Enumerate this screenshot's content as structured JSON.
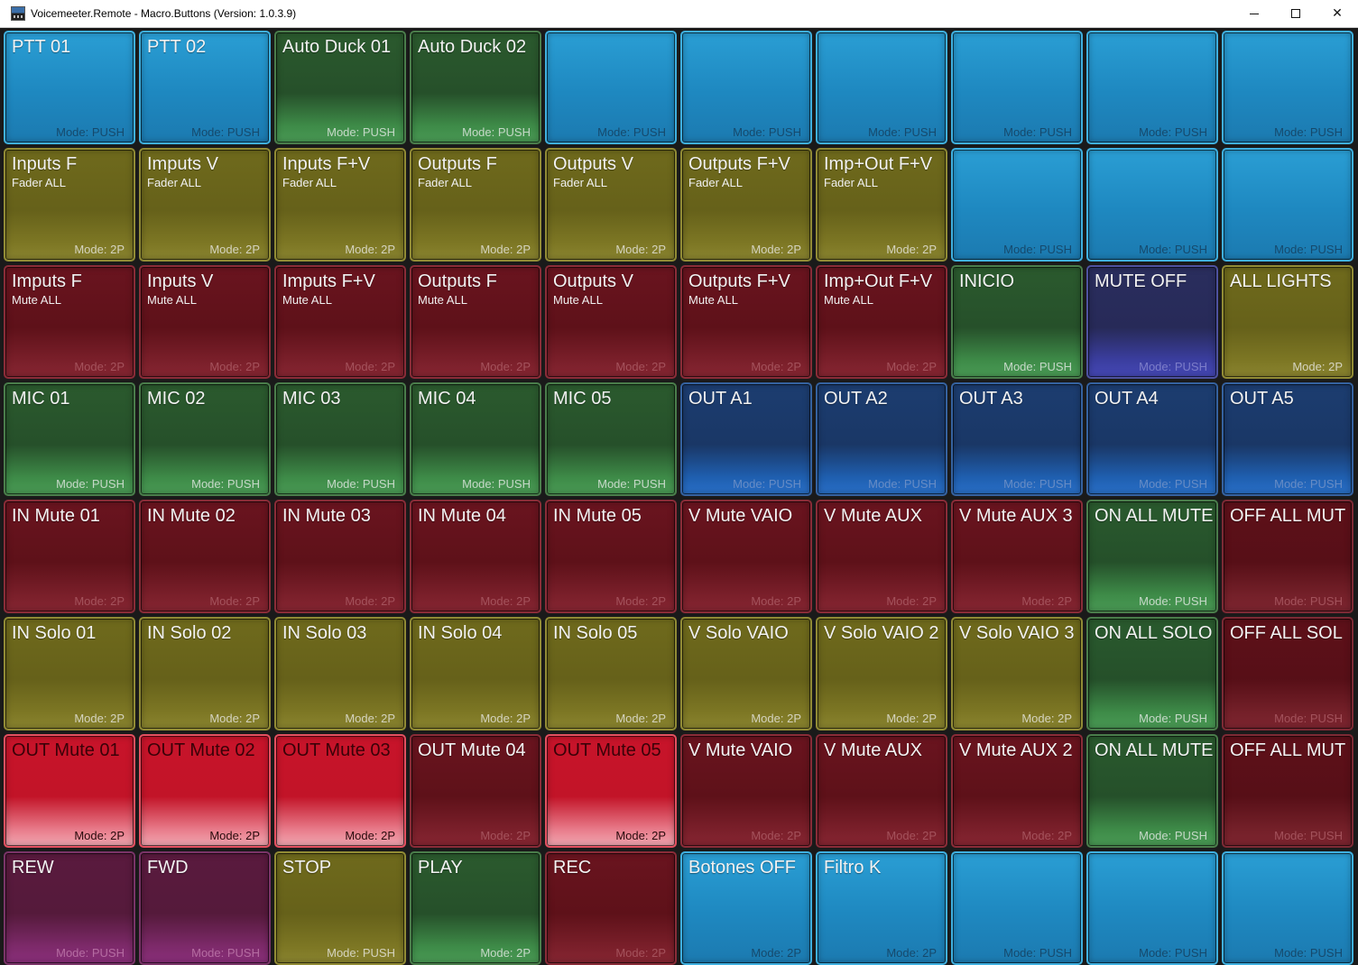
{
  "window": {
    "title": "Voicemeeter.Remote - Macro.Buttons (Version: 1.0.3.9)"
  },
  "buttons": [
    {
      "label": "PTT 01",
      "sub": "",
      "mode": "Mode: PUSH",
      "color": "blue"
    },
    {
      "label": "PTT 02",
      "sub": "",
      "mode": "Mode: PUSH",
      "color": "blue"
    },
    {
      "label": "Auto Duck 01",
      "sub": "",
      "mode": "Mode: PUSH",
      "color": "green"
    },
    {
      "label": "Auto Duck 02",
      "sub": "",
      "mode": "Mode: PUSH",
      "color": "green"
    },
    {
      "label": "",
      "sub": "",
      "mode": "Mode: PUSH",
      "color": "blue"
    },
    {
      "label": "",
      "sub": "",
      "mode": "Mode: PUSH",
      "color": "blue"
    },
    {
      "label": "",
      "sub": "",
      "mode": "Mode: PUSH",
      "color": "blue"
    },
    {
      "label": "",
      "sub": "",
      "mode": "Mode: PUSH",
      "color": "blue"
    },
    {
      "label": "",
      "sub": "",
      "mode": "Mode: PUSH",
      "color": "blue"
    },
    {
      "label": "",
      "sub": "",
      "mode": "Mode: PUSH",
      "color": "blue"
    },
    {
      "label": "Inputs F",
      "sub": "Fader ALL",
      "mode": "Mode: 2P",
      "color": "olive"
    },
    {
      "label": "Imputs V",
      "sub": "Fader ALL",
      "mode": "Mode: 2P",
      "color": "olive"
    },
    {
      "label": "Inputs F+V",
      "sub": "Fader ALL",
      "mode": "Mode: 2P",
      "color": "olive"
    },
    {
      "label": "Outputs F",
      "sub": "Fader ALL",
      "mode": "Mode: 2P",
      "color": "olive"
    },
    {
      "label": "Outputs V",
      "sub": "Fader ALL",
      "mode": "Mode: 2P",
      "color": "olive"
    },
    {
      "label": "Outputs F+V",
      "sub": "Fader ALL",
      "mode": "Mode: 2P",
      "color": "olive"
    },
    {
      "label": "Imp+Out F+V",
      "sub": "Fader ALL",
      "mode": "Mode: 2P",
      "color": "olive"
    },
    {
      "label": "",
      "sub": "",
      "mode": "Mode: PUSH",
      "color": "blue"
    },
    {
      "label": "",
      "sub": "",
      "mode": "Mode: PUSH",
      "color": "blue"
    },
    {
      "label": "",
      "sub": "",
      "mode": "Mode: PUSH",
      "color": "blue"
    },
    {
      "label": "Imputs F",
      "sub": "Mute ALL",
      "mode": "Mode: 2P",
      "color": "maroon"
    },
    {
      "label": "Inputs V",
      "sub": "Mute ALL",
      "mode": "Mode: 2P",
      "color": "maroon"
    },
    {
      "label": "Imputs F+V",
      "sub": "Mute ALL",
      "mode": "Mode: 2P",
      "color": "maroon"
    },
    {
      "label": "Outputs F",
      "sub": "Mute ALL",
      "mode": "Mode: 2P",
      "color": "maroon"
    },
    {
      "label": "Outputs V",
      "sub": "Mute ALL",
      "mode": "Mode: 2P",
      "color": "maroon"
    },
    {
      "label": "Outputs F+V",
      "sub": "Mute ALL",
      "mode": "Mode: 2P",
      "color": "maroon"
    },
    {
      "label": "Imp+Out F+V",
      "sub": "Mute ALL",
      "mode": "Mode: 2P",
      "color": "maroon"
    },
    {
      "label": "INICIO",
      "sub": "",
      "mode": "Mode: PUSH",
      "color": "green"
    },
    {
      "label": "MUTE OFF",
      "sub": "",
      "mode": "Mode: PUSH",
      "color": "purpleblue"
    },
    {
      "label": "ALL LIGHTS",
      "sub": "",
      "mode": "Mode: 2P",
      "color": "olive"
    },
    {
      "label": "MIC 01",
      "sub": "",
      "mode": "Mode: PUSH",
      "color": "green"
    },
    {
      "label": "MIC 02",
      "sub": "",
      "mode": "Mode: PUSH",
      "color": "green"
    },
    {
      "label": "MIC 03",
      "sub": "",
      "mode": "Mode: PUSH",
      "color": "green"
    },
    {
      "label": "MIC 04",
      "sub": "",
      "mode": "Mode: PUSH",
      "color": "green"
    },
    {
      "label": "MIC 05",
      "sub": "",
      "mode": "Mode: PUSH",
      "color": "green"
    },
    {
      "label": "OUT A1",
      "sub": "",
      "mode": "Mode: PUSH",
      "color": "navy"
    },
    {
      "label": "OUT A2",
      "sub": "",
      "mode": "Mode: PUSH",
      "color": "navy"
    },
    {
      "label": "OUT A3",
      "sub": "",
      "mode": "Mode: PUSH",
      "color": "navy"
    },
    {
      "label": "OUT A4",
      "sub": "",
      "mode": "Mode: PUSH",
      "color": "navy"
    },
    {
      "label": "OUT A5",
      "sub": "",
      "mode": "Mode: PUSH",
      "color": "navy"
    },
    {
      "label": "IN Mute 01",
      "sub": "",
      "mode": "Mode: 2P",
      "color": "maroon"
    },
    {
      "label": "IN Mute 02",
      "sub": "",
      "mode": "Mode: 2P",
      "color": "maroon"
    },
    {
      "label": "IN Mute 03",
      "sub": "",
      "mode": "Mode: 2P",
      "color": "maroon"
    },
    {
      "label": "IN Mute 04",
      "sub": "",
      "mode": "Mode: 2P",
      "color": "maroon"
    },
    {
      "label": "IN Mute 05",
      "sub": "",
      "mode": "Mode: 2P",
      "color": "maroon"
    },
    {
      "label": "V Mute VAIO",
      "sub": "",
      "mode": "Mode: 2P",
      "color": "maroon"
    },
    {
      "label": "V Mute AUX",
      "sub": "",
      "mode": "Mode: 2P",
      "color": "maroon"
    },
    {
      "label": "V Mute AUX 3",
      "sub": "",
      "mode": "Mode: 2P",
      "color": "maroon"
    },
    {
      "label": "ON ALL MUTE",
      "sub": "",
      "mode": "Mode: PUSH",
      "color": "greenmute"
    },
    {
      "label": "OFF ALL MUT",
      "sub": "",
      "mode": "Mode: PUSH",
      "color": "darkred"
    },
    {
      "label": "IN Solo 01",
      "sub": "",
      "mode": "Mode: 2P",
      "color": "olive"
    },
    {
      "label": "IN Solo 02",
      "sub": "",
      "mode": "Mode: 2P",
      "color": "olive"
    },
    {
      "label": "IN Solo 03",
      "sub": "",
      "mode": "Mode: 2P",
      "color": "olive"
    },
    {
      "label": "IN Solo 04",
      "sub": "",
      "mode": "Mode: 2P",
      "color": "olive"
    },
    {
      "label": "IN Solo 05",
      "sub": "",
      "mode": "Mode: 2P",
      "color": "olive"
    },
    {
      "label": "V Solo VAIO",
      "sub": "",
      "mode": "Mode: 2P",
      "color": "olive"
    },
    {
      "label": "V Solo VAIO 2",
      "sub": "",
      "mode": "Mode: 2P",
      "color": "olive"
    },
    {
      "label": "V Solo VAIO 3",
      "sub": "",
      "mode": "Mode: 2P",
      "color": "olive"
    },
    {
      "label": "ON ALL SOLO",
      "sub": "",
      "mode": "Mode: PUSH",
      "color": "greenmute"
    },
    {
      "label": "OFF ALL SOL",
      "sub": "",
      "mode": "Mode: PUSH",
      "color": "darkred"
    },
    {
      "label": "OUT Mute 01",
      "sub": "",
      "mode": "Mode: 2P",
      "color": "red"
    },
    {
      "label": "OUT Mute 02",
      "sub": "",
      "mode": "Mode: 2P",
      "color": "red"
    },
    {
      "label": "OUT Mute 03",
      "sub": "",
      "mode": "Mode: 2P",
      "color": "red"
    },
    {
      "label": "OUT Mute 04",
      "sub": "",
      "mode": "Mode: 2P",
      "color": "maroon"
    },
    {
      "label": "OUT Mute 05",
      "sub": "",
      "mode": "Mode: 2P",
      "color": "red"
    },
    {
      "label": "V Mute VAIO",
      "sub": "",
      "mode": "Mode: 2P",
      "color": "maroon"
    },
    {
      "label": "V Mute AUX",
      "sub": "",
      "mode": "Mode: 2P",
      "color": "maroon"
    },
    {
      "label": "V Mute AUX 2",
      "sub": "",
      "mode": "Mode: 2P",
      "color": "maroon"
    },
    {
      "label": "ON ALL MUTE",
      "sub": "",
      "mode": "Mode: PUSH",
      "color": "greenmute"
    },
    {
      "label": "OFF ALL MUT",
      "sub": "",
      "mode": "Mode: PUSH",
      "color": "darkred"
    },
    {
      "label": "REW",
      "sub": "",
      "mode": "Mode: PUSH",
      "color": "plum"
    },
    {
      "label": "FWD",
      "sub": "",
      "mode": "Mode: PUSH",
      "color": "plum"
    },
    {
      "label": "STOP",
      "sub": "",
      "mode": "Mode: PUSH",
      "color": "olive"
    },
    {
      "label": "PLAY",
      "sub": "",
      "mode": "Mode: 2P",
      "color": "green"
    },
    {
      "label": "REC",
      "sub": "",
      "mode": "Mode: 2P",
      "color": "maroon"
    },
    {
      "label": "Botones OFF",
      "sub": "",
      "mode": "Mode: 2P",
      "color": "blue"
    },
    {
      "label": "Filtro K",
      "sub": "",
      "mode": "Mode: 2P",
      "color": "blue"
    },
    {
      "label": "",
      "sub": "",
      "mode": "Mode: PUSH",
      "color": "blue"
    },
    {
      "label": "",
      "sub": "",
      "mode": "Mode: PUSH",
      "color": "blue"
    },
    {
      "label": "",
      "sub": "",
      "mode": "Mode: PUSH",
      "color": "blue"
    }
  ]
}
